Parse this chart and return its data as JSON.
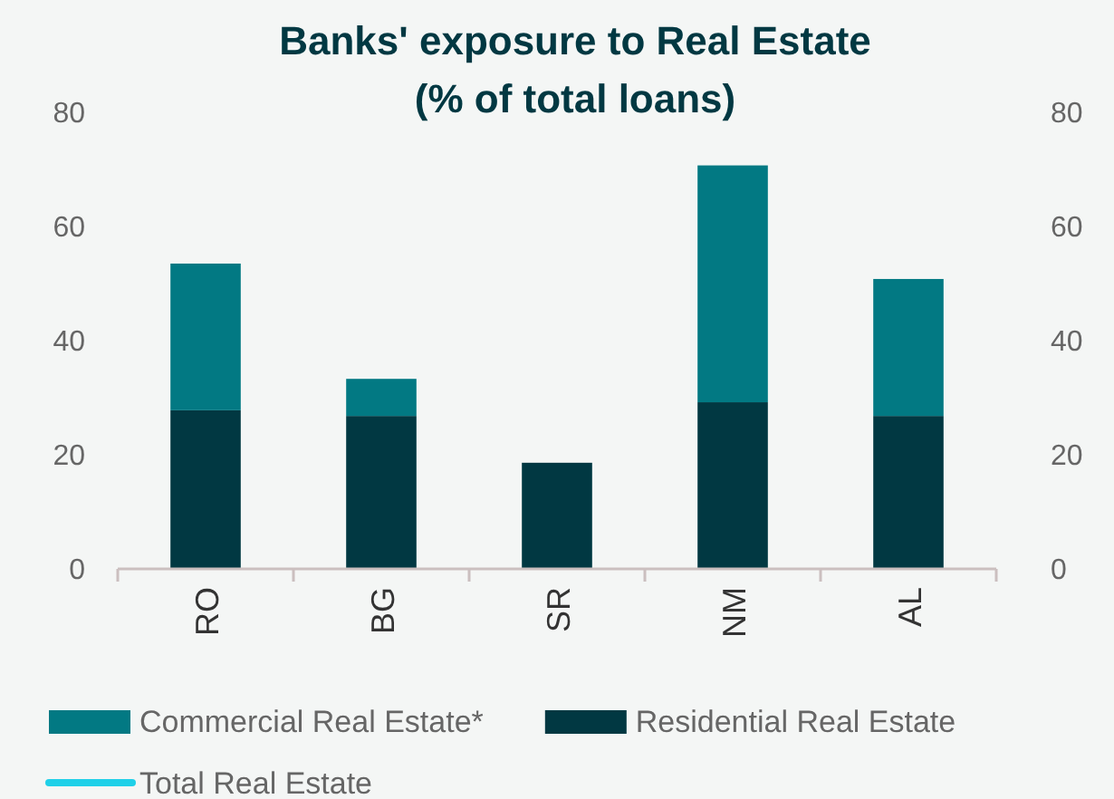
{
  "chart_data": {
    "type": "bar",
    "title": "Banks' exposure to Real Estate\n(% of total loans)",
    "categories": [
      "RO",
      "BG",
      "SR",
      "NM",
      "AL"
    ],
    "stacked": true,
    "series": [
      {
        "name": "Residential Real Estate",
        "color": "#013842",
        "values": [
          27.8,
          26.8,
          18.6,
          29.2,
          26.8
        ]
      },
      {
        "name": "Commercial Real Estate*",
        "color": "#027983",
        "values": [
          25.7,
          6.5,
          null,
          41.5,
          24.0
        ]
      },
      {
        "name": "Total Real Estate",
        "type": "line",
        "color": "#1fd0e8",
        "values": [
          null,
          null,
          null,
          null,
          null
        ]
      }
    ],
    "ylim": [
      0,
      80
    ],
    "yticks": [
      0,
      20,
      40,
      60,
      80
    ],
    "y2lim": [
      0,
      80
    ],
    "y2ticks": [
      0,
      20,
      40,
      60,
      80
    ],
    "grid": false,
    "legend": "bottom"
  }
}
